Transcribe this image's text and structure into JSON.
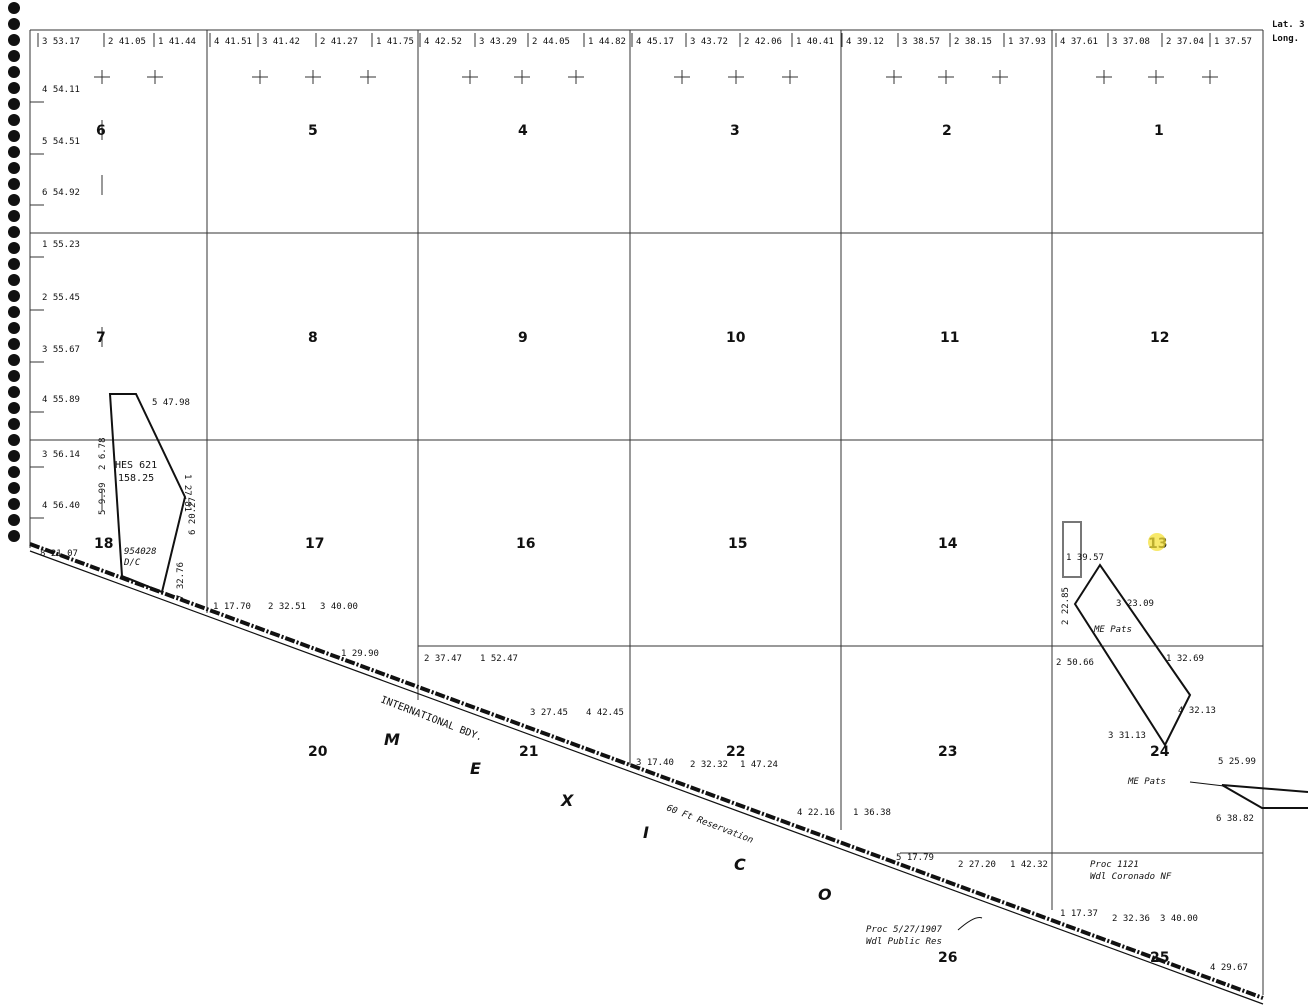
{
  "header": {
    "lat_label": "Lat. 3",
    "long_label": "Long."
  },
  "top_lots": [
    "3 53.17",
    "2 41.05",
    "1 41.44",
    "4 41.51",
    "3 41.42",
    "2 41.27",
    "1 41.75",
    "4 42.52",
    "3 43.29",
    "2 44.05",
    "1 44.82",
    "4 45.17",
    "3 43.72",
    "2 42.06",
    "1 40.41",
    "4 39.12",
    "3 38.57",
    "2 38.15",
    "1 37.93",
    "4 37.61",
    "3 37.08",
    "2 37.04",
    "1 37.57"
  ],
  "left_lots": [
    "4 54.11",
    "5 54.51",
    "6 54.92",
    "1 55.23",
    "2 55.45",
    "3 55.67",
    "4 55.89",
    "3 56.14",
    "4 56.40"
  ],
  "sections": [
    "6",
    "5",
    "4",
    "3",
    "2",
    "1",
    "7",
    "8",
    "9",
    "10",
    "11",
    "12",
    "18",
    "17",
    "16",
    "15",
    "14",
    "13",
    "20",
    "21",
    "22",
    "23",
    "24",
    "26",
    "25"
  ],
  "lots_misc": [
    "5 47.98",
    "1 27.81",
    "6 20.27",
    "7 32.76",
    "8 21.07",
    "2 6.78",
    "5 9.99",
    "1 17.70",
    "2 32.51",
    "3 40.00",
    "1 29.90",
    "2 37.47",
    "1 52.47",
    "3 27.45",
    "4 42.45",
    "3 17.40",
    "2 32.32",
    "1 47.24",
    "4 22.16",
    "1 36.38",
    "1 39.57",
    "3 23.09",
    "2 22.85",
    "2 50.66",
    "1 32.69",
    "4 32.13",
    "3 31.13",
    "5 25.99",
    "6 38.82",
    "5 17.79",
    "2 27.20",
    "1 42.32",
    "1 17.37",
    "2 32.36",
    "3 40.00",
    "4 29.67"
  ],
  "annotations": {
    "hes": "HES 621",
    "hes_area": "158.25",
    "serial": "954028",
    "dc": "D/C",
    "me_pats_1": "ME Pats",
    "me_pats_2": "ME Pats",
    "boundary": "INTERNATIONAL  BDY.",
    "mexico_letters": [
      "M",
      "E",
      "X",
      "I",
      "C",
      "O"
    ],
    "reservation": "60 Ft Reservation",
    "proc_1121": "Proc 1121",
    "wdl_coronado": "Wdl Coronado NF",
    "proc_1907": "Proc 5/27/1907",
    "wdl_public": "Wdl Public Res"
  },
  "colors": {
    "ink": "#111111",
    "highlight": "#f5e23a",
    "paper": "#ffffff"
  }
}
